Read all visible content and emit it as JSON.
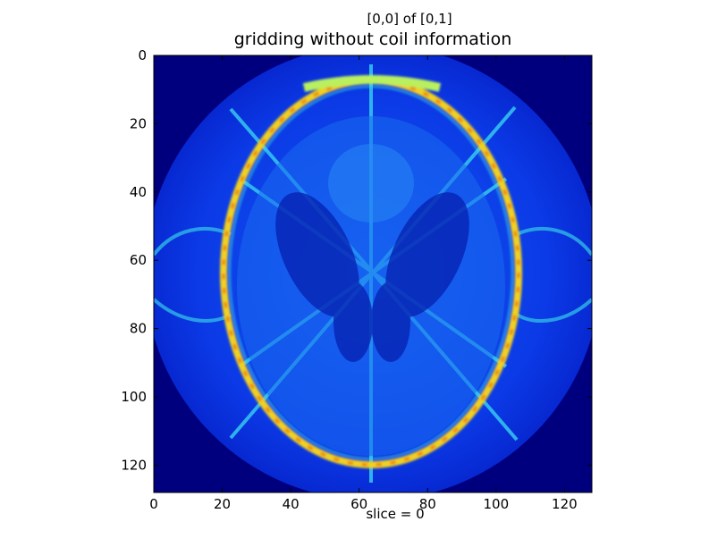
{
  "figure": {
    "subtitle": "[0,0] of [0,1]",
    "title": "gridding without coil information",
    "footer": "slice = 0"
  },
  "axes": {
    "x_ticks": [
      "0",
      "20",
      "40",
      "60",
      "80",
      "100",
      "120"
    ],
    "y_ticks": [
      "0",
      "20",
      "40",
      "60",
      "80",
      "100",
      "120"
    ],
    "x_range": [
      0,
      128
    ],
    "y_range": [
      0,
      128
    ]
  },
  "image": {
    "colormap": "jet",
    "background_color": "#00007f",
    "disk_color": "#0a2ee0",
    "ring_color": "#f2a61a"
  }
}
